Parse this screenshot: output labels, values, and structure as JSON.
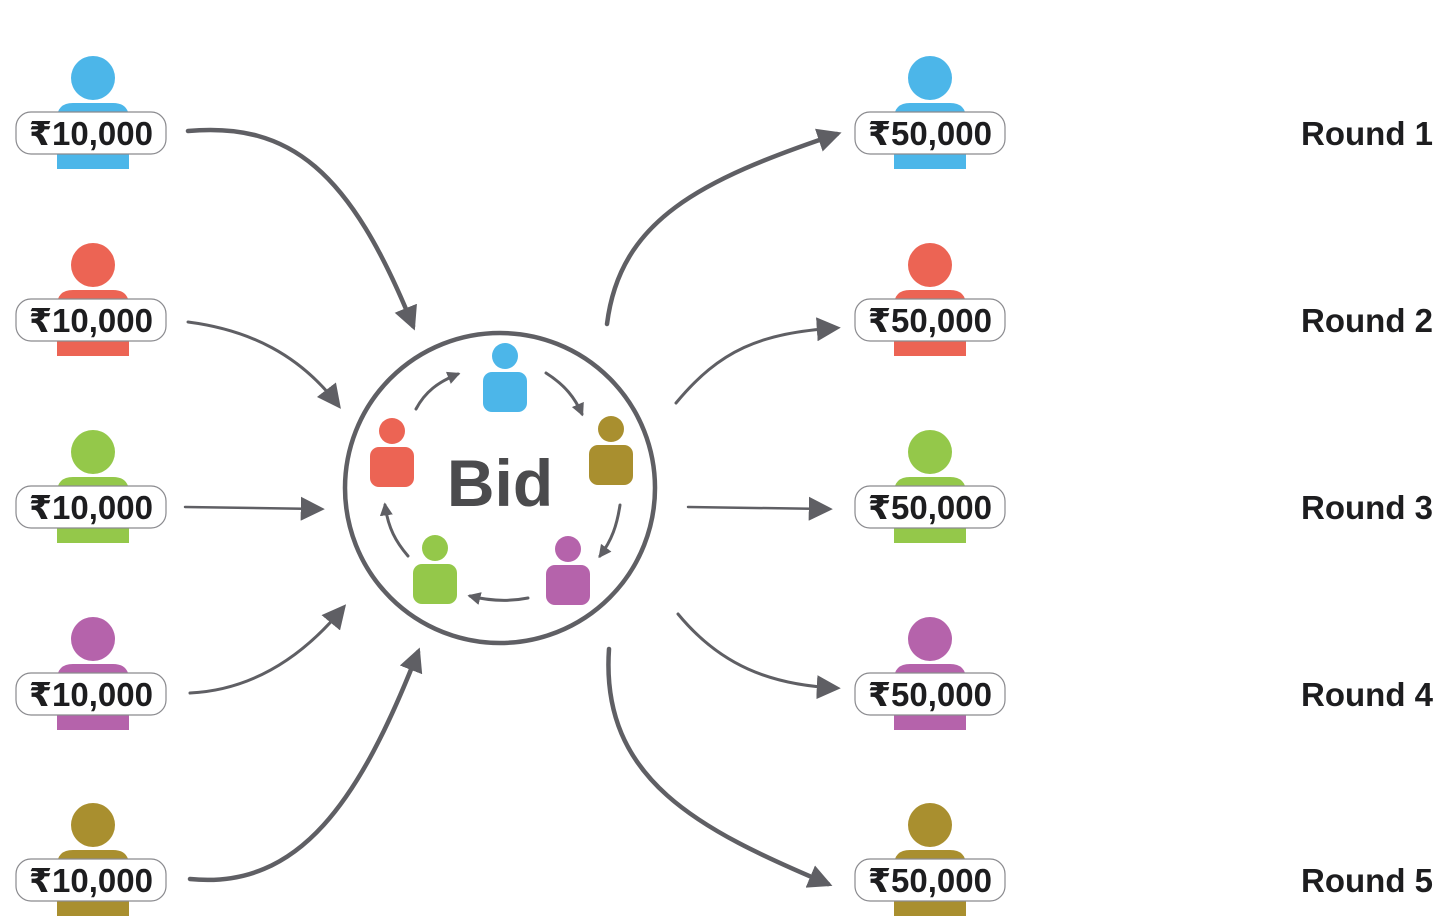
{
  "center": {
    "label": "Bid"
  },
  "colors": {
    "blue": "#4cb6e9",
    "red": "#ec6454",
    "green": "#94c84a",
    "purple": "#b563ab",
    "olive": "#a98f2f",
    "arrow": "#5f5f64",
    "text": "#1d1d1f",
    "bid_text": "#4b4b4d"
  },
  "contributions": [
    {
      "amount": "₹10,000",
      "color": "blue"
    },
    {
      "amount": "₹10,000",
      "color": "red"
    },
    {
      "amount": "₹10,000",
      "color": "green"
    },
    {
      "amount": "₹10,000",
      "color": "purple"
    },
    {
      "amount": "₹10,000",
      "color": "olive"
    }
  ],
  "payouts": [
    {
      "amount": "₹50,000",
      "color": "blue",
      "round": "Round 1"
    },
    {
      "amount": "₹50,000",
      "color": "red",
      "round": "Round 2"
    },
    {
      "amount": "₹50,000",
      "color": "green",
      "round": "Round 3"
    },
    {
      "amount": "₹50,000",
      "color": "purple",
      "round": "Round 4"
    },
    {
      "amount": "₹50,000",
      "color": "olive",
      "round": "Round 5"
    }
  ],
  "circle_members": [
    {
      "color": "blue",
      "icon": "person-icon"
    },
    {
      "color": "olive",
      "icon": "person-icon"
    },
    {
      "color": "purple",
      "icon": "person-icon"
    },
    {
      "color": "green",
      "icon": "person-icon"
    },
    {
      "color": "red",
      "icon": "person-icon"
    }
  ]
}
